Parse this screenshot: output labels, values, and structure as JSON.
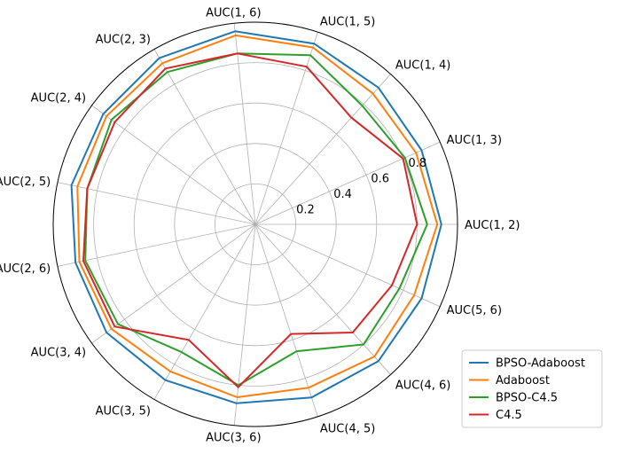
{
  "chart_data": {
    "type": "radar",
    "title": "",
    "categories": [
      "AUC(1, 2)",
      "AUC(1, 3)",
      "AUC(1, 4)",
      "AUC(1, 5)",
      "AUC(1, 6)",
      "AUC(2, 3)",
      "AUC(2, 4)",
      "AUC(2, 5)",
      "AUC(2, 6)",
      "AUC(3, 4)",
      "AUC(3, 5)",
      "AUC(3, 6)",
      "AUC(4, 5)",
      "AUC(4, 6)",
      "AUC(5, 6)"
    ],
    "rlim": [
      0,
      1.0
    ],
    "rticks": [
      0.2,
      0.4,
      0.6,
      0.8
    ],
    "rtick_labels": [
      "0.2",
      "0.4",
      "0.6",
      "0.8"
    ],
    "grid": true,
    "legend_position": "lower-right",
    "series": [
      {
        "name": "BPSO-Adaboost",
        "color": "#1f77b4",
        "values": [
          0.92,
          0.9,
          0.91,
          0.94,
          0.96,
          0.95,
          0.93,
          0.93,
          0.91,
          0.91,
          0.89,
          0.89,
          0.9,
          0.91,
          0.9
        ]
      },
      {
        "name": "Adaboost",
        "color": "#ff7f0e",
        "values": [
          0.9,
          0.87,
          0.87,
          0.92,
          0.94,
          0.92,
          0.91,
          0.9,
          0.89,
          0.88,
          0.84,
          0.86,
          0.85,
          0.88,
          0.86
        ]
      },
      {
        "name": "BPSO-C4.5",
        "color": "#2ca02c",
        "values": [
          0.85,
          0.81,
          0.79,
          0.88,
          0.85,
          0.87,
          0.88,
          0.85,
          0.86,
          0.84,
          0.73,
          0.8,
          0.66,
          0.8,
          0.78
        ]
      },
      {
        "name": "C4.5",
        "color": "#d62728",
        "values": [
          0.8,
          0.8,
          0.71,
          0.82,
          0.85,
          0.89,
          0.86,
          0.85,
          0.87,
          0.86,
          0.66,
          0.81,
          0.57,
          0.72,
          0.74
        ]
      }
    ]
  }
}
